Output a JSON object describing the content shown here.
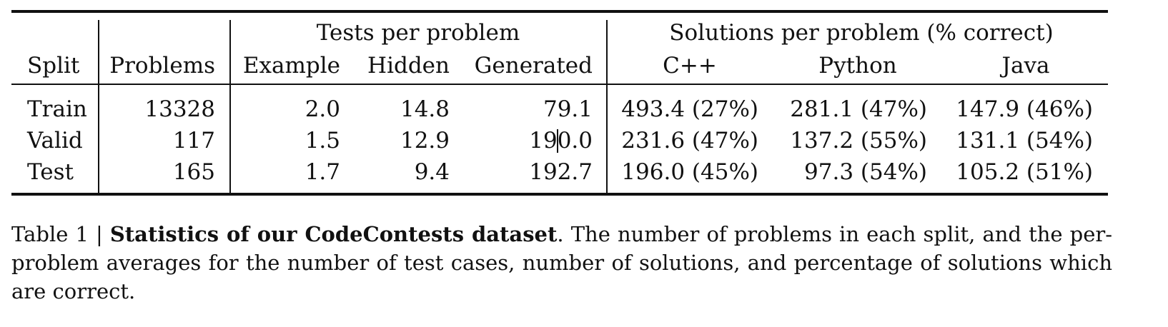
{
  "table": {
    "group_headers": {
      "tests": "Tests per problem",
      "solutions": "Solutions per problem (% correct)"
    },
    "columns": [
      "Split",
      "Problems",
      "Example",
      "Hidden",
      "Generated",
      "C++",
      "Python",
      "Java"
    ],
    "rows": [
      [
        "Train",
        "13328",
        "2.0",
        "14.8",
        "79.1",
        "493.4 (27%)",
        "281.1 (47%)",
        "147.9 (46%)"
      ],
      [
        "Valid",
        "117",
        "1.5",
        "12.9",
        "190.0",
        "231.6 (47%)",
        "137.2 (55%)",
        "131.1 (54%)"
      ],
      [
        "Test",
        "165",
        "1.7",
        "9.4",
        "192.7",
        "196.0 (45%)",
        "97.3 (54%)",
        "105.2 (51%)"
      ]
    ]
  },
  "caption": {
    "label": "Table 1 | ",
    "title": "Statistics of our CodeContests dataset",
    "text": ". The number of problems in each split, and the per-problem averages for the number of test cases, number of solutions, and percentage of solutions which are correct."
  }
}
